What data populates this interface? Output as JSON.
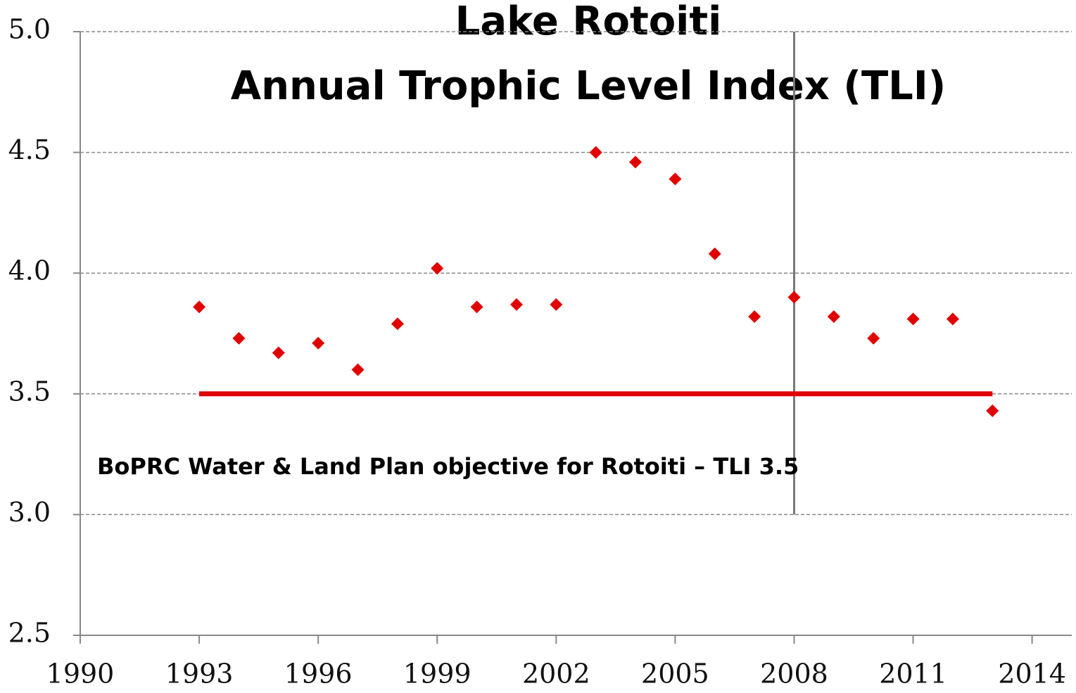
{
  "chart_data": {
    "type": "scatter",
    "title": "Lake Rotoiti",
    "subtitle": "Annual Trophic Level Index (TLI)",
    "annotation": "BoPRC Water & Land Plan objective for Rotoiti – TLI 3.5",
    "series": [
      {
        "color": "#e00000",
        "x": [
          1993,
          1994,
          1995,
          1996,
          1997,
          1998,
          1999,
          2000,
          2001,
          2002,
          2003,
          2004,
          2005,
          2006,
          2007,
          2008,
          2009,
          2010,
          2011,
          2012,
          2013
        ],
        "values": [
          3.86,
          3.73,
          3.67,
          3.71,
          3.6,
          3.79,
          4.02,
          3.86,
          3.87,
          3.87,
          4.5,
          4.46,
          4.39,
          4.08,
          3.82,
          3.9,
          3.82,
          3.73,
          3.81,
          3.81,
          3.43
        ]
      }
    ],
    "target": {
      "value": 3.5,
      "xrange": [
        1993,
        2013
      ],
      "color": "#e00000"
    },
    "vline": {
      "x": 2008,
      "yrange": [
        3.0,
        5.0
      ],
      "color": "#777777"
    },
    "xlim": [
      1990,
      2015
    ],
    "xticks": [
      1990,
      1993,
      1996,
      1999,
      2002,
      2005,
      2008,
      2011,
      2014
    ],
    "ylim": [
      2.5,
      5.0
    ],
    "yticks": [
      {
        "value": 2.5,
        "label": "2.5"
      },
      {
        "value": 3.0,
        "label": "3.0"
      },
      {
        "value": 3.5,
        "label": "3.5"
      },
      {
        "value": 4.0,
        "label": "4.0"
      },
      {
        "value": 4.5,
        "label": "4.5"
      },
      {
        "value": 5.0,
        "label": "5.0"
      }
    ],
    "grid": true
  }
}
